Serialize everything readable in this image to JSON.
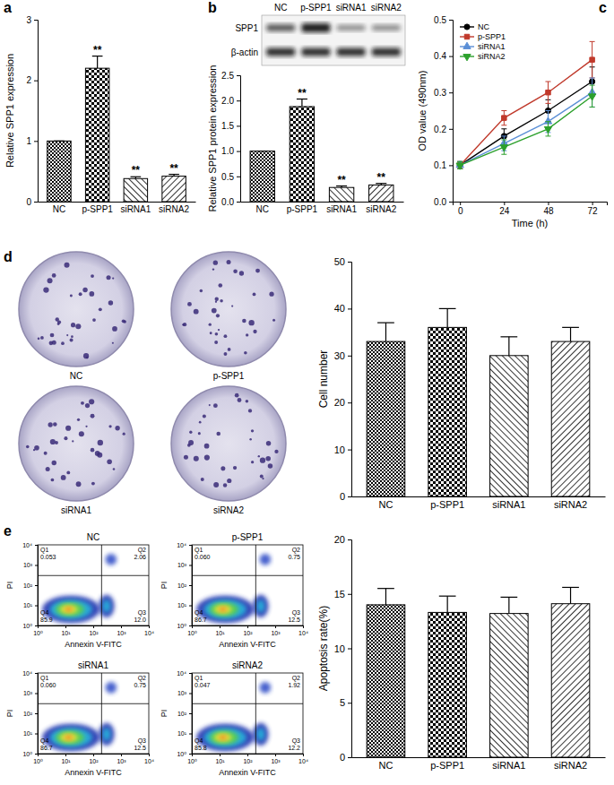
{
  "chart_data": [
    {
      "type": "bar",
      "panel": "a",
      "y_label": "Relative SPP1 expression",
      "categories": [
        "NC",
        "p-SPP1",
        "siRNA1",
        "siRNA2"
      ],
      "values": [
        1,
        2.2,
        0.38,
        0.42
      ],
      "errors": [
        0,
        0.2,
        0.03,
        0.03
      ],
      "annotations": [
        null,
        "**",
        "**",
        "**"
      ],
      "ylim": [
        0,
        3
      ],
      "yticks": [
        0,
        1,
        2,
        3
      ]
    },
    {
      "type": "bar",
      "panel": "b",
      "y_label": "Relative SPP1 protein expression",
      "categories": [
        "NC",
        "p-SPP1",
        "siRNA1",
        "siRNA2"
      ],
      "values": [
        1,
        1.88,
        0.28,
        0.33
      ],
      "errors": [
        0,
        0.15,
        0.03,
        0.03
      ],
      "annotations": [
        null,
        "**",
        "**",
        "**"
      ],
      "ylim": [
        0,
        2.5
      ],
      "yticks": [
        {
          "value": 0,
          "label": "0.0"
        },
        0.5,
        {
          "value": 1,
          "label": "1.0"
        },
        1.5,
        {
          "value": 2,
          "label": "2.0"
        },
        2.5
      ],
      "blot": {
        "rows": [
          "SPP1",
          "β-actin"
        ],
        "columns": [
          "NC",
          "p-SPP1",
          "siRNA1",
          "siRNA2"
        ]
      }
    },
    {
      "type": "line",
      "panel": "c",
      "x_label": "Time (h)",
      "y_label": "OD value (490nm)",
      "x": [
        0,
        24,
        48,
        72
      ],
      "xlim": [
        -4,
        80
      ],
      "xticks": [
        0,
        24,
        48,
        72
      ],
      "ylim": [
        0,
        0.5
      ],
      "yticks": [
        {
          "value": 0,
          "label": "0.0"
        },
        0.1,
        0.2,
        0.3,
        0.4,
        0.5
      ],
      "legend": "upper left",
      "series": [
        {
          "name": "NC",
          "color": "#000000",
          "marker": "circle",
          "line_style": "solid",
          "values": [
            0.1,
            0.18,
            0.25,
            0.33
          ],
          "errors": [
            0.01,
            0.02,
            0.03,
            0.04
          ]
        },
        {
          "name": "p-SPP1",
          "color": "#c0392b",
          "marker": "square",
          "line_style": "solid",
          "values": [
            0.1,
            0.23,
            0.3,
            0.39
          ],
          "errors": [
            0.01,
            0.02,
            0.03,
            0.05
          ]
        },
        {
          "name": "siRNA1",
          "color": "#5b8fd6",
          "marker": "triangle",
          "line_style": "solid",
          "values": [
            0.1,
            0.16,
            0.22,
            0.3
          ],
          "errors": [
            0.01,
            0.02,
            0.03,
            0.04
          ]
        },
        {
          "name": "siRNA2",
          "color": "#2ca02c",
          "marker": "triangle-down",
          "line_style": "solid",
          "values": [
            0.1,
            0.15,
            0.2,
            0.29
          ],
          "errors": [
            0.01,
            0.02,
            0.02,
            0.03
          ]
        }
      ]
    },
    {
      "type": "bar",
      "panel": "d",
      "y_label": "Cell number",
      "categories": [
        "NC",
        "p-SPP1",
        "siRNA1",
        "siRNA2"
      ],
      "values": [
        33,
        36,
        30,
        33
      ],
      "errors": [
        4,
        4,
        4,
        3
      ],
      "ylim": [
        0,
        50
      ],
      "yticks": [
        0,
        10,
        20,
        30,
        40,
        50
      ],
      "plate_labels": [
        "NC",
        "p-SPP1",
        "siRNA1",
        "siRNA2"
      ]
    },
    {
      "type": "bar",
      "panel": "e",
      "y_label": "Apoptosis rate(%)",
      "categories": [
        "NC",
        "p-SPP1",
        "siRNA1",
        "siRNA2"
      ],
      "values": [
        14,
        13.3,
        13.2,
        14.1
      ],
      "errors": [
        1.5,
        1.5,
        1.5,
        1.5
      ],
      "ylim": [
        0,
        20
      ],
      "yticks": [
        0,
        5,
        10,
        15,
        20
      ],
      "flow": {
        "x_label": "Annexin V-FITC",
        "y_label": "PI",
        "log": true,
        "xlim": [
          1,
          10000
        ],
        "ylim": [
          1,
          10000
        ],
        "xticks": [
          {
            "value": 1,
            "label": "10⁰"
          },
          {
            "value": 10,
            "label": "10¹"
          },
          {
            "value": 100,
            "label": "10²"
          },
          {
            "value": 1000,
            "label": "10³"
          },
          {
            "value": 10000,
            "label": "10⁴"
          }
        ],
        "yticks": [
          {
            "value": 1,
            "label": "10⁰"
          },
          {
            "value": 10,
            "label": "10¹"
          },
          {
            "value": 100,
            "label": "10²"
          },
          {
            "value": 1000,
            "label": "10³"
          },
          {
            "value": 10000,
            "label": "10⁴"
          }
        ],
        "gate": [
          200,
          300
        ],
        "plots": [
          {
            "title": "NC",
            "quadrants": [
              "Q1",
              "Q2",
              "Q3",
              "Q4"
            ],
            "values": [
              0.053,
              2.06,
              12,
              85.9
            ],
            "value_labels": [
              "0.053",
              "2.06",
              "12.0",
              "85.9"
            ]
          },
          {
            "title": "p-SPP1",
            "quadrants": [
              "Q1",
              "Q2",
              "Q3",
              "Q4"
            ],
            "values": [
              0.06,
              0.75,
              12.5,
              86.7
            ],
            "value_labels": [
              "0.060",
              "0.75",
              "12.5",
              "86.7"
            ]
          },
          {
            "title": "siRNA1",
            "quadrants": [
              "Q1",
              "Q2",
              "Q3",
              "Q4"
            ],
            "values": [
              0.06,
              0.75,
              12.5,
              86.7
            ],
            "value_labels": [
              "0.060",
              "0.75",
              "12.5",
              "86.7"
            ]
          },
          {
            "title": "siRNA2",
            "quadrants": [
              "Q1",
              "Q2",
              "Q3",
              "Q4"
            ],
            "values": [
              0.047,
              1.92,
              12.2,
              85.8
            ],
            "value_labels": [
              "0.047",
              "1.92",
              "12.2",
              "85.8"
            ]
          }
        ]
      }
    }
  ]
}
